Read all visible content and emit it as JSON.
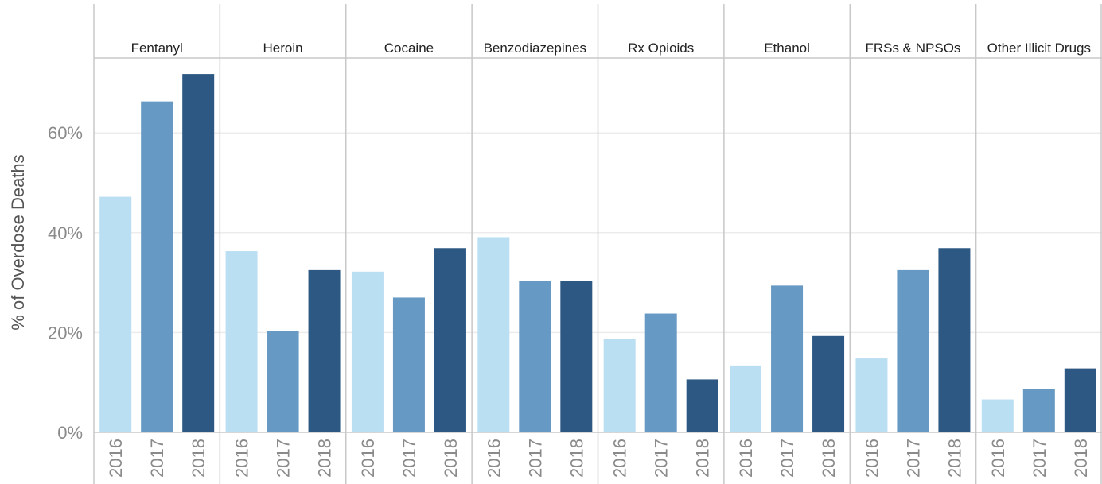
{
  "chart_data": {
    "type": "bar",
    "ylabel": "% of Overdose Deaths",
    "ylim": [
      0,
      75
    ],
    "yticks": [
      0,
      20,
      40,
      60
    ],
    "ytick_labels": [
      "0%",
      "20%",
      "40%",
      "60%"
    ],
    "grid": true,
    "years": [
      "2016",
      "2017",
      "2018"
    ],
    "colors": {
      "2016": "#bbdff2",
      "2017": "#6699c3",
      "2018": "#2c5883"
    },
    "panels": [
      {
        "name": "Fentanyl",
        "values": [
          47.2,
          66.3,
          71.8
        ]
      },
      {
        "name": "Heroin",
        "values": [
          36.3,
          20.3,
          32.5
        ]
      },
      {
        "name": "Cocaine",
        "values": [
          32.2,
          27.0,
          36.9
        ]
      },
      {
        "name": "Benzodiazepines",
        "values": [
          39.1,
          30.3,
          30.3
        ]
      },
      {
        "name": "Rx Opioids",
        "values": [
          18.7,
          23.8,
          10.6
        ]
      },
      {
        "name": "Ethanol",
        "values": [
          13.4,
          29.4,
          19.3
        ]
      },
      {
        "name": "FRSs & NPSOs",
        "values": [
          14.8,
          32.5,
          36.9
        ]
      },
      {
        "name": "Other Illicit Drugs",
        "values": [
          6.6,
          8.6,
          12.8
        ]
      }
    ]
  }
}
